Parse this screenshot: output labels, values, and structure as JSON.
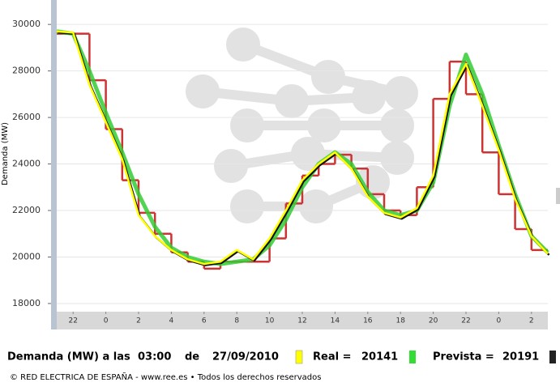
{
  "chart_data": {
    "type": "line",
    "y_label": "Demanda (MW)",
    "x": [
      21,
      22,
      23,
      24,
      25,
      26,
      27,
      28,
      29,
      30,
      31,
      32,
      33,
      34,
      35,
      36,
      37,
      38,
      39,
      40,
      41,
      42,
      43,
      44,
      45,
      46,
      47,
      48,
      49,
      50,
      51
    ],
    "series": [
      {
        "color": "#cc3333",
        "step": true,
        "values": [
          29600,
          29600,
          27600,
          25500,
          23300,
          21900,
          21000,
          20200,
          19800,
          19500,
          19800,
          19800,
          19800,
          20800,
          22300,
          23500,
          24000,
          24400,
          23800,
          22700,
          22000,
          21800,
          23000,
          26800,
          28400,
          27000,
          24500,
          22700,
          21200,
          20300,
          20300
        ]
      },
      {
        "color": "#33cc33",
        "values": [
          29700,
          29600,
          28000,
          26200,
          24500,
          22700,
          21300,
          20400,
          20000,
          19800,
          19700,
          19800,
          19900,
          20500,
          21600,
          23000,
          24000,
          24500,
          24000,
          22800,
          22000,
          21800,
          22000,
          23200,
          26500,
          28700,
          27000,
          24800,
          22700,
          20900,
          20191
        ]
      },
      {
        "color": "#ffff00",
        "shadow": "#111111",
        "values": [
          29700,
          29650,
          27400,
          25800,
          24200,
          21800,
          20900,
          20300,
          19900,
          19700,
          19800,
          20300,
          19900,
          20800,
          22000,
          23300,
          24000,
          24500,
          23800,
          22600,
          21900,
          21700,
          22100,
          23500,
          27000,
          28300,
          26500,
          24600,
          22500,
          20900,
          20141
        ]
      }
    ],
    "xlim": [
      21,
      51
    ],
    "xticks": [
      22,
      {
        "value": 24,
        "label": "0"
      },
      {
        "value": 26,
        "label": "2"
      },
      {
        "value": 28,
        "label": "4"
      },
      {
        "value": 30,
        "label": "6"
      },
      {
        "value": 32,
        "label": "8"
      },
      {
        "value": 34,
        "label": "10"
      },
      {
        "value": 36,
        "label": "12"
      },
      {
        "value": 38,
        "label": "14"
      },
      {
        "value": 40,
        "label": "16"
      },
      {
        "value": 42,
        "label": "18"
      },
      {
        "value": 44,
        "label": "20"
      },
      {
        "value": 46,
        "label": "22"
      },
      {
        "value": 48,
        "label": "0"
      },
      {
        "value": 50,
        "label": "2"
      }
    ],
    "ylim": [
      17650,
      31050
    ],
    "yticks": [
      18000,
      20000,
      22000,
      24000,
      26000,
      28000,
      30000
    ],
    "grid": true
  },
  "footer": {
    "label": "Demanda (MW) a las",
    "time": "03:00",
    "de": "de",
    "date": "27/09/2010",
    "real_label": "Real =",
    "real_value": 20141,
    "prevista_label": "Prevista =",
    "prevista_value": 20191,
    "copyright": "© RED ELECTRICA DE ESPAÑA - www.ree.es • Todos los derechos reservados"
  }
}
